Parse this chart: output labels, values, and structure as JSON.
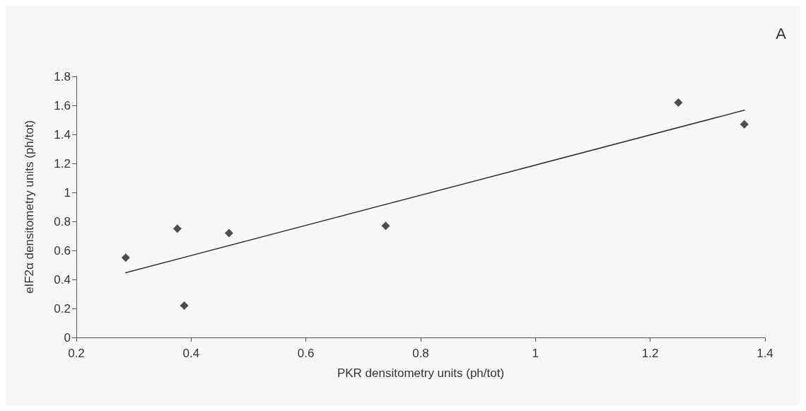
{
  "chart_data": {
    "type": "scatter",
    "xlabel": "PKR densitometry units (ph/tot)",
    "ylabel": "eIF2α densitometry units (ph/tot)",
    "annotations": [
      "A"
    ],
    "series": [
      {
        "color": "#222222",
        "marker": "diamond",
        "x": [
          0.286,
          0.376,
          0.388,
          0.466,
          0.739,
          1.249,
          1.364
        ],
        "values": [
          0.55,
          0.75,
          0.22,
          0.72,
          0.77,
          1.62,
          1.47
        ]
      },
      {
        "type": "line",
        "color": "#333333",
        "marker": "none",
        "x": [
          0.286,
          1.364
        ],
        "values": [
          0.446,
          1.567
        ]
      }
    ],
    "xlim": [
      0.2,
      1.4
    ],
    "xticks": [
      0.2,
      0.4,
      0.6,
      0.8,
      1,
      1.2,
      1.4
    ],
    "ylim": [
      0,
      1.8
    ],
    "yticks": [
      0,
      0.2,
      0.4,
      0.6,
      0.8,
      1,
      1.2,
      1.4,
      1.6,
      1.8
    ],
    "grid": false
  }
}
